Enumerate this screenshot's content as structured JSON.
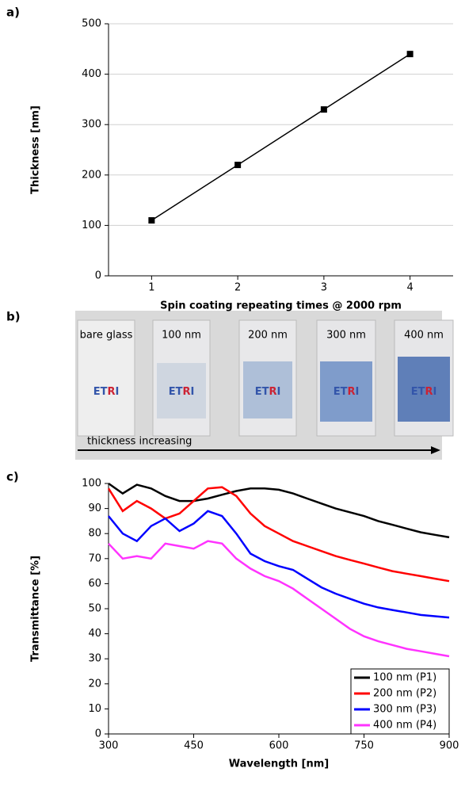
{
  "panel_labels": [
    "a)",
    "b)",
    "c)"
  ],
  "chart_data": [
    {
      "type": "line",
      "x": [
        1,
        2,
        3,
        4
      ],
      "values": [
        110,
        220,
        330,
        440
      ],
      "color": "#000000",
      "marker": "square",
      "xlim": [
        0.5,
        4.5
      ],
      "xticks": [
        1,
        2,
        3,
        4
      ],
      "ylim": [
        0,
        500
      ],
      "yticks": [
        0,
        100,
        200,
        300,
        400,
        500
      ],
      "grid": true,
      "xlabel": "Spin coating repeating times @ 2000 rpm",
      "ylabel": "Thickness [nm]"
    },
    {
      "type": "line",
      "x": [
        300,
        325,
        350,
        375,
        400,
        425,
        450,
        475,
        500,
        525,
        550,
        575,
        600,
        625,
        650,
        675,
        700,
        725,
        750,
        775,
        800,
        825,
        850,
        875,
        900
      ],
      "series": [
        {
          "name": "100 nm (P1)",
          "color": "#000000",
          "values": [
            100,
            96,
            99.5,
            98,
            95,
            93,
            93,
            94,
            95.5,
            97,
            98,
            98,
            97.5,
            96,
            94,
            92,
            90,
            88.5,
            87,
            85,
            83.5,
            82,
            80.5,
            79.5,
            78.5
          ]
        },
        {
          "name": "200 nm (P2)",
          "color": "#ff0000",
          "values": [
            98,
            89,
            93,
            90,
            86,
            88,
            93,
            98,
            98.5,
            95,
            88,
            83,
            80,
            77,
            75,
            73,
            71,
            69.5,
            68,
            66.5,
            65,
            64,
            63,
            62,
            61
          ]
        },
        {
          "name": "300 nm (P3)",
          "color": "#0000ff",
          "values": [
            87,
            80,
            77,
            83,
            86,
            81,
            84,
            89,
            87,
            80,
            72,
            69,
            67,
            65.5,
            62,
            58.5,
            56,
            54,
            52,
            50.5,
            49.5,
            48.5,
            47.5,
            47,
            46.5
          ]
        },
        {
          "name": "400 nm (P4)",
          "color": "#ff33ff",
          "values": [
            76,
            70,
            71,
            70,
            76,
            75,
            74,
            77,
            76,
            70,
            66,
            63,
            61,
            58,
            54,
            50,
            46,
            42,
            39,
            37,
            35.5,
            34,
            33,
            32,
            31
          ]
        }
      ],
      "xlim": [
        300,
        900
      ],
      "xticks": [
        300,
        450,
        600,
        750,
        900
      ],
      "ylim": [
        0,
        100
      ],
      "yticks": [
        0,
        10,
        20,
        30,
        40,
        50,
        60,
        70,
        80,
        90,
        100
      ],
      "grid": false,
      "legend": "lower right",
      "xlabel": "Wavelength [nm]",
      "ylabel": "Transmittance [%]"
    }
  ],
  "photo": {
    "labels": [
      "bare glass",
      "100 nm",
      "200 nm",
      "300 nm",
      "400 nm"
    ],
    "logo_parts": [
      "ET",
      "R",
      "I"
    ],
    "arrow_label": "thickness increasing"
  }
}
